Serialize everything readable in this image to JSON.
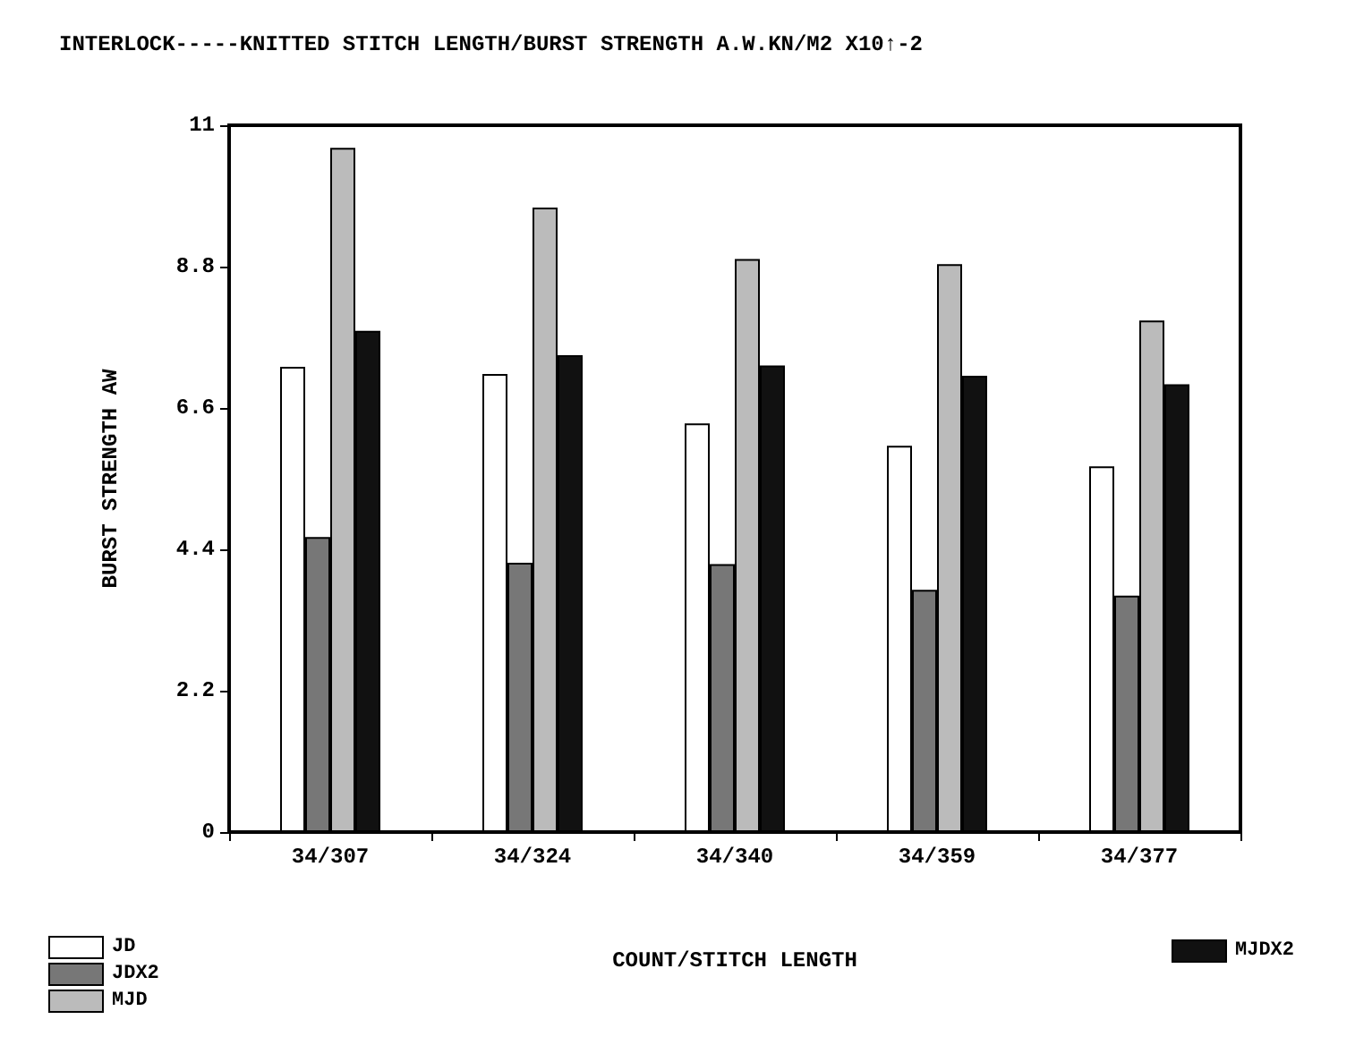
{
  "chart_data": {
    "type": "bar",
    "title": "INTERLOCK-----KNITTED STITCH LENGTH/BURST STRENGTH A.W.KN/M2 X10↑-2",
    "xlabel": "COUNT/STITCH LENGTH",
    "ylabel": "BURST STRENGTH AW",
    "categories": [
      "34/307",
      "34/324",
      "34/340",
      "34/359",
      "34/377"
    ],
    "series": [
      {
        "name": "JD",
        "color": "#ffffff",
        "values": [
          7.24,
          7.13,
          6.36,
          6.01,
          5.69
        ]
      },
      {
        "name": "JDX2",
        "color": "#777777",
        "values": [
          4.59,
          4.19,
          4.17,
          3.77,
          3.68
        ]
      },
      {
        "name": "MJD",
        "color": "#bbbbbb",
        "values": [
          10.65,
          9.72,
          8.92,
          8.84,
          7.96
        ]
      },
      {
        "name": "MJDX2",
        "color": "#111111",
        "values": [
          7.8,
          7.42,
          7.26,
          7.1,
          6.97
        ]
      }
    ],
    "ylim": [
      0,
      11
    ],
    "yticks": [
      0,
      2.2,
      4.4,
      6.6,
      8.8,
      11
    ],
    "grid": false,
    "legend": "bottom"
  }
}
